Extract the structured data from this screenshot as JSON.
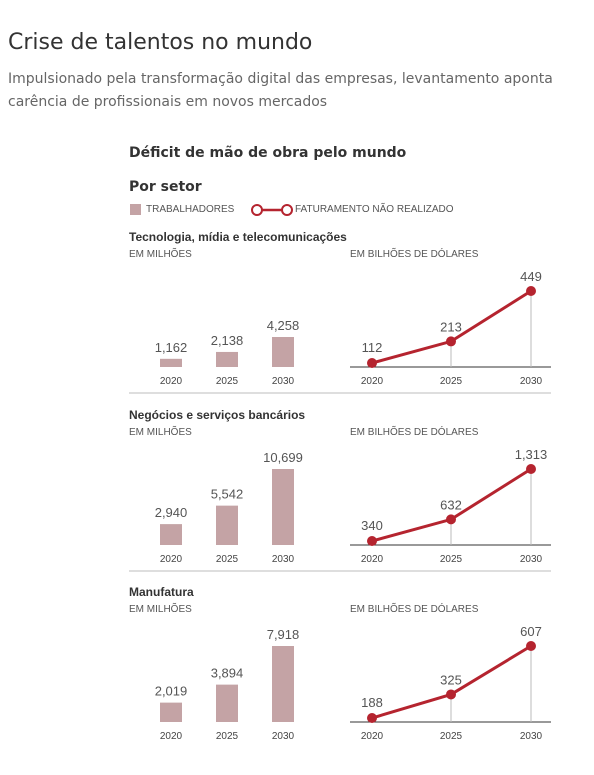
{
  "header": {
    "title": "Crise de talentos no mundo",
    "subtitle": "Impulsionado pela transformação digital das empresas, levantamento aponta carência de profissionais em novos mercados"
  },
  "chart_title": "Déficit de mão de obra pelo mundo",
  "section_label": "Por setor",
  "legend": {
    "workers": "TRABALHADORES",
    "revenue": "FATURAMENTO NÃO REALIZADO"
  },
  "colors": {
    "bar": "#c4a3a5",
    "line": "#b5242f",
    "axis": "#999999"
  },
  "chart_data": [
    {
      "sector": "Tecnologia, mídia e telecomunicações",
      "workers": {
        "type": "bar",
        "unit_label": "EM MILHÕES",
        "categories": [
          "2020",
          "2025",
          "2030"
        ],
        "values": [
          1.162,
          2.138,
          4.258
        ],
        "labels": [
          "1,162",
          "2,138",
          "4,258"
        ]
      },
      "revenue": {
        "type": "line",
        "unit_label": "EM BILHÕES DE DÓLARES",
        "categories": [
          "2020",
          "2025",
          "2030"
        ],
        "values": [
          112,
          213,
          449
        ],
        "labels": [
          "112",
          "213",
          "449"
        ]
      }
    },
    {
      "sector": "Negócios e serviços bancários",
      "workers": {
        "type": "bar",
        "unit_label": "EM MILHÕES",
        "categories": [
          "2020",
          "2025",
          "2030"
        ],
        "values": [
          2.94,
          5.542,
          10.699
        ],
        "labels": [
          "2,940",
          "5,542",
          "10,699"
        ]
      },
      "revenue": {
        "type": "line",
        "unit_label": "EM BILHÕES DE DÓLARES",
        "categories": [
          "2020",
          "2025",
          "2030"
        ],
        "values": [
          340,
          632,
          1313
        ],
        "labels": [
          "340",
          "632",
          "1,313"
        ]
      }
    },
    {
      "sector": "Manufatura",
      "workers": {
        "type": "bar",
        "unit_label": "EM MILHÕES",
        "categories": [
          "2020",
          "2025",
          "2030"
        ],
        "values": [
          2.019,
          3.894,
          7.918
        ],
        "labels": [
          "2,019",
          "3,894",
          "7,918"
        ]
      },
      "revenue": {
        "type": "line",
        "unit_label": "EM BILHÕES DE DÓLARES",
        "categories": [
          "2020",
          "2025",
          "2030"
        ],
        "values": [
          188,
          325,
          607
        ],
        "labels": [
          "188",
          "325",
          "607"
        ]
      }
    }
  ]
}
